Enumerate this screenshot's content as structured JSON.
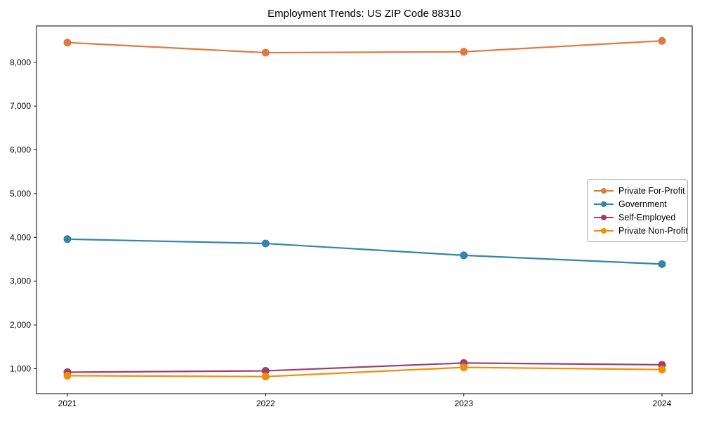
{
  "chart_data": {
    "type": "line",
    "title": "Employment Trends: US ZIP Code 88310",
    "x": [
      2021,
      2022,
      2023,
      2024
    ],
    "x_labels": [
      "2021",
      "2022",
      "2023",
      "2024"
    ],
    "series": [
      {
        "name": "Private For-Profit",
        "color": "#E1793E",
        "values": [
          8450,
          8220,
          8240,
          8490
        ]
      },
      {
        "name": "Government",
        "color": "#2E86AB",
        "values": [
          3960,
          3860,
          3590,
          3390
        ]
      },
      {
        "name": "Self-Employed",
        "color": "#A23B72",
        "values": [
          920,
          950,
          1130,
          1090
        ]
      },
      {
        "name": "Private Non-Profit",
        "color": "#F18F01",
        "values": [
          840,
          820,
          1030,
          980
        ]
      }
    ],
    "yticks": [
      1000,
      2000,
      3000,
      4000,
      5000,
      6000,
      7000,
      8000
    ],
    "ytick_labels": [
      "1,000",
      "2,000",
      "3,000",
      "4,000",
      "5,000",
      "6,000",
      "7,000",
      "8,000"
    ],
    "ylim": [
      430,
      8830
    ],
    "xlabel": "",
    "ylabel": "",
    "grid": false,
    "marker": "o",
    "legend_position": "center right"
  }
}
